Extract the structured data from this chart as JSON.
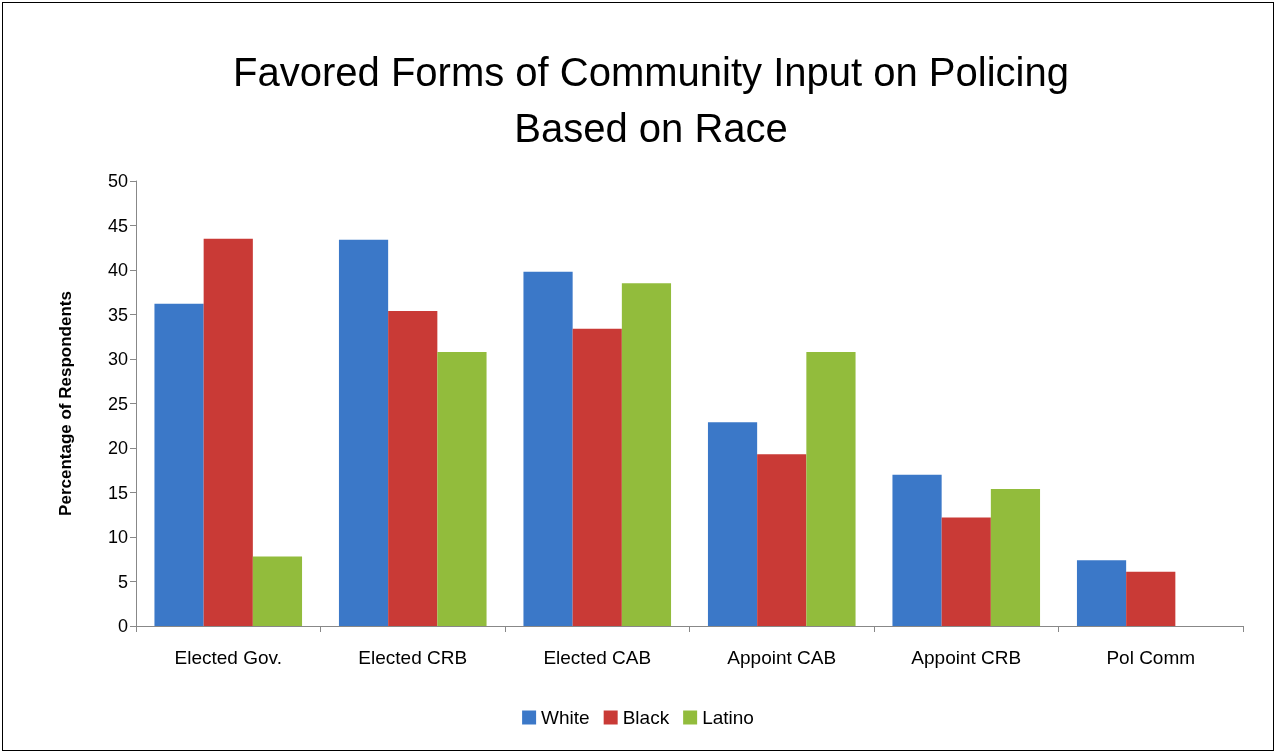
{
  "chart_data": {
    "type": "bar",
    "title": "Favored Forms of Community Input on Policing\nBased on Race",
    "ylabel": "Percentage of Respondents",
    "categories": [
      "Elected Gov.",
      "Elected CRB",
      "Elected CAB",
      "Appoint CAB",
      "Appoint CRB",
      "Pol Comm"
    ],
    "series": [
      {
        "name": "White",
        "color": "#3b78c8",
        "values": [
          36.2,
          43.4,
          39.8,
          22.9,
          17.0,
          7.4
        ]
      },
      {
        "name": "Black",
        "color": "#c93a36",
        "values": [
          43.5,
          35.4,
          33.4,
          19.3,
          12.2,
          6.1
        ]
      },
      {
        "name": "Latino",
        "color": "#92bc3c",
        "values": [
          7.8,
          30.8,
          38.5,
          30.8,
          15.4,
          null
        ]
      }
    ],
    "ylim": [
      0,
      50
    ],
    "yticks": [
      0,
      5,
      10,
      15,
      20,
      25,
      30,
      35,
      40,
      45,
      50
    ],
    "grid": false,
    "legend": "bottom"
  }
}
